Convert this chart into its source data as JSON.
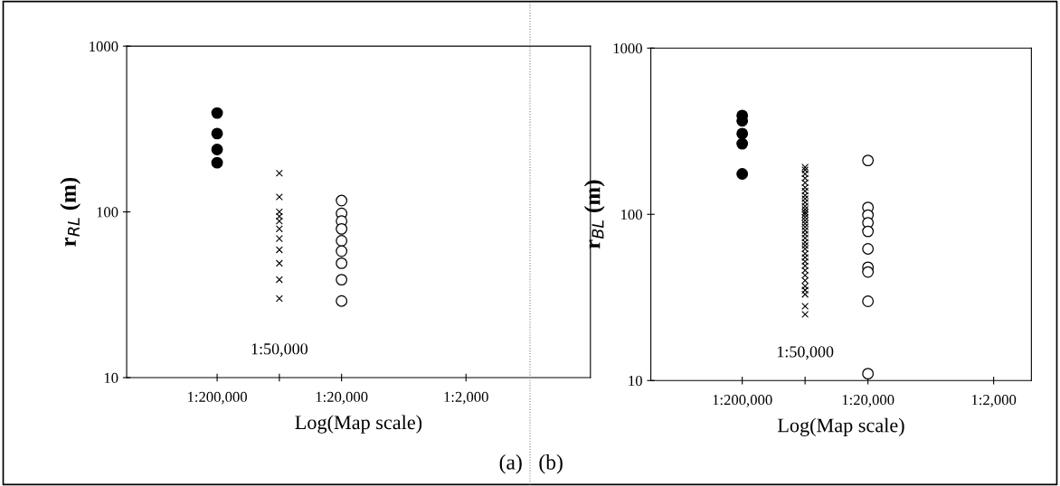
{
  "chart_data": [
    {
      "type": "scatter",
      "xlabel": "Log(Map scale)",
      "ylabel": "r$_{RL}$ (m)",
      "log": "y",
      "grid": false,
      "legend": false,
      "categories": [
        "1:200,000",
        "1:50,000",
        "1:20,000",
        null,
        "1:2,000"
      ],
      "ylim": [
        10,
        1000
      ],
      "yticks": [
        10,
        100,
        1000
      ],
      "series": [
        {
          "color": "#000000",
          "marker": "circle",
          "x": [
            "1:200,000",
            "1:200,000",
            "1:200,000",
            "1:200,000"
          ],
          "values": [
            395,
            297,
            238,
            198
          ]
        },
        {
          "color": "#000000",
          "marker": "cross",
          "x": [
            "1:50,000",
            "1:50,000",
            "1:50,000",
            "1:50,000",
            "1:50,000",
            "1:50,000",
            "1:50,000",
            "1:50,000",
            "1:50,000",
            "1:50,000",
            "1:50,000"
          ],
          "values": [
            171,
            123,
            100,
            94,
            88,
            79,
            69,
            59,
            49,
            39,
            30
          ]
        },
        {
          "color": "#ffffff",
          "marker": "circle",
          "x": [
            "1:20,000",
            "1:20,000",
            "1:20,000",
            "1:20,000",
            "1:20,000",
            "1:20,000",
            "1:20,000",
            "1:20,000",
            "1:20,000"
          ],
          "values": [
            117,
            98,
            88,
            79,
            67,
            58,
            49,
            39,
            29
          ]
        }
      ],
      "annotations": [
        "(a)"
      ]
    },
    {
      "type": "scatter",
      "xlabel": "Log(Map scale)",
      "ylabel": "r$_{BL}$ (m)",
      "log": "y",
      "grid": false,
      "legend": false,
      "categories": [
        "1:200,000",
        "1:50,000",
        "1:20,000",
        null,
        "1:2,000"
      ],
      "ylim": [
        10,
        1000
      ],
      "yticks": [
        10,
        100,
        1000
      ],
      "series": [
        {
          "color": "#000000",
          "marker": "circle",
          "x": [
            "1:200,000",
            "1:200,000",
            "1:200,000",
            "1:200,000",
            "1:200,000"
          ],
          "values": [
            393,
            365,
            306,
            266,
            175
          ]
        },
        {
          "color": "#000000",
          "marker": "cross",
          "x": [
            "1:50,000",
            "1:50,000",
            "1:50,000",
            "1:50,000",
            "1:50,000",
            "1:50,000",
            "1:50,000",
            "1:50,000",
            "1:50,000",
            "1:50,000",
            "1:50,000",
            "1:50,000",
            "1:50,000",
            "1:50,000",
            "1:50,000",
            "1:50,000",
            "1:50,000",
            "1:50,000",
            "1:50,000",
            "1:50,000",
            "1:50,000",
            "1:50,000",
            "1:50,000",
            "1:50,000",
            "1:50,000",
            "1:50,000",
            "1:50,000",
            "1:50,000",
            "1:50,000",
            "1:50,000",
            "1:50,000",
            "1:50,000",
            "1:50,000",
            "1:50,000",
            "1:50,000",
            "1:50,000"
          ],
          "values": [
            192,
            185,
            175,
            165,
            155,
            145,
            138,
            130,
            124,
            118,
            112,
            107,
            103,
            100,
            96,
            92,
            88,
            84,
            80,
            76,
            72,
            68,
            65,
            62,
            58,
            55,
            52,
            49,
            46,
            43,
            40,
            37,
            35,
            33,
            28,
            25
          ]
        },
        {
          "color": "#ffffff",
          "marker": "circle",
          "x": [
            "1:20,000",
            "1:20,000",
            "1:20,000",
            "1:20,000",
            "1:20,000",
            "1:20,000",
            "1:20,000",
            "1:20,000",
            "1:20,000",
            "1:20,000"
          ],
          "values": [
            211,
            110,
            99,
            89,
            79,
            62,
            48,
            45,
            30,
            11
          ]
        }
      ],
      "annotations": [
        "(b)"
      ]
    }
  ]
}
